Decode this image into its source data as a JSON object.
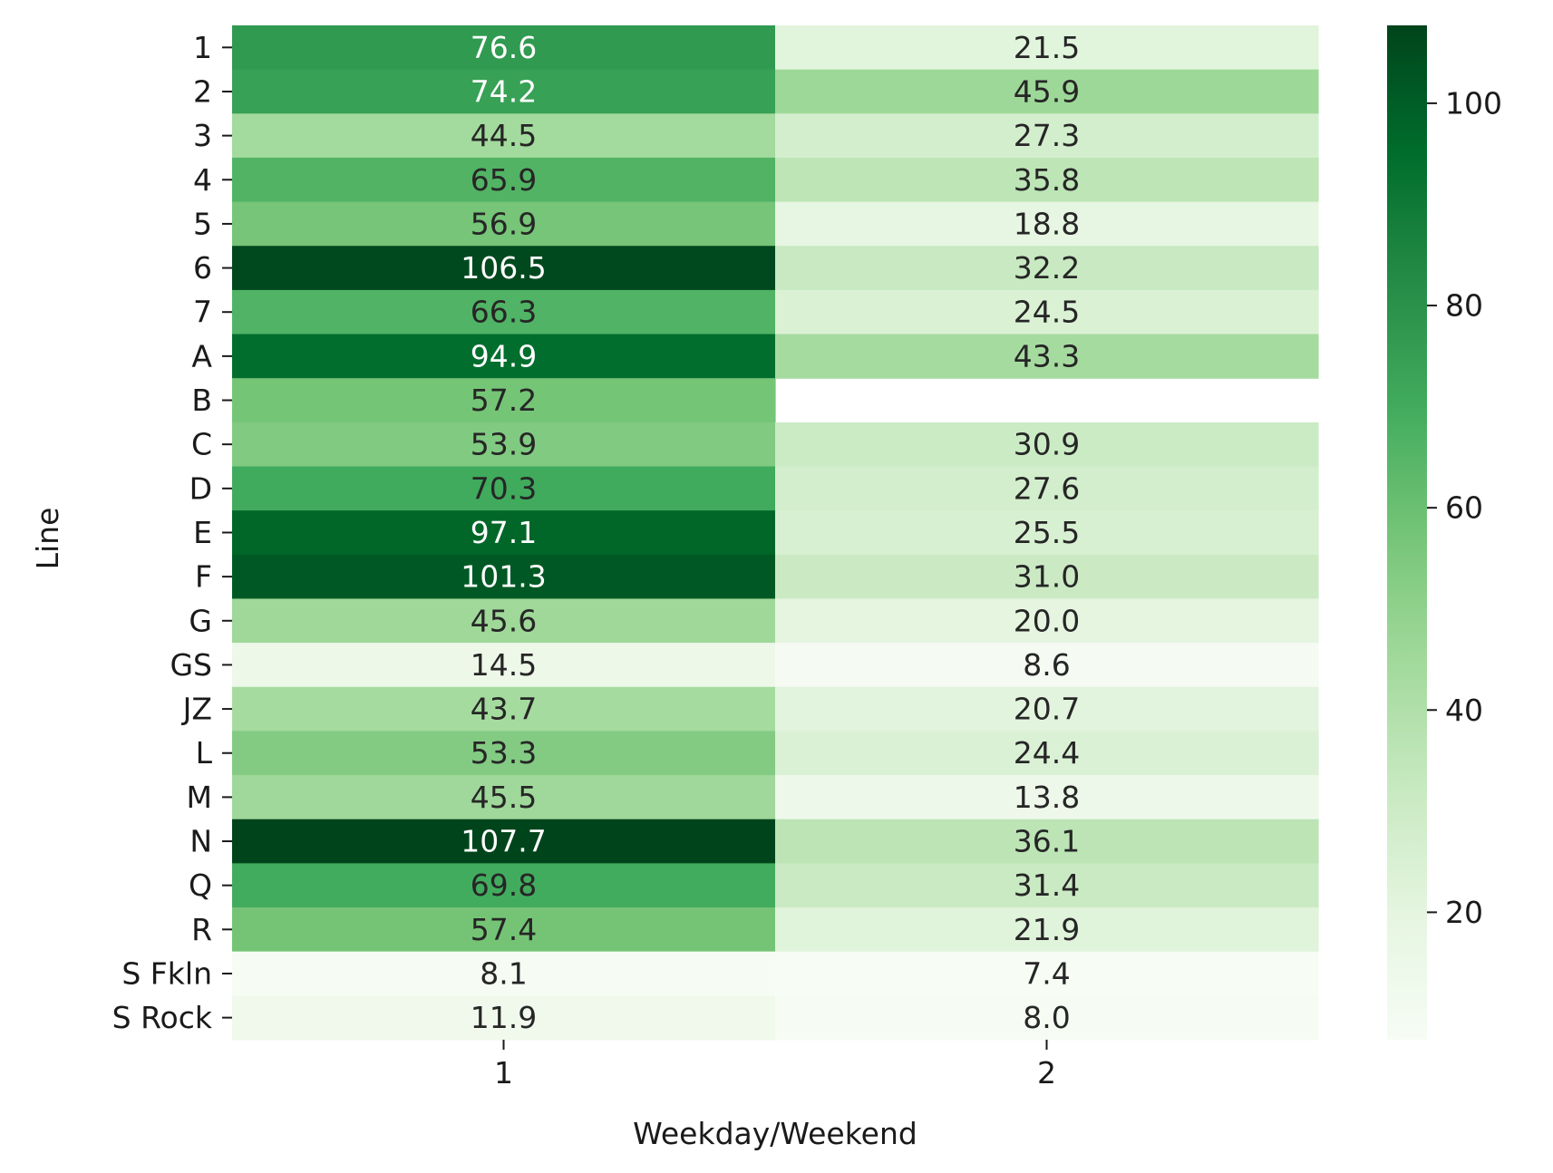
{
  "chart_data": {
    "type": "heatmap",
    "title": "",
    "xlabel": "Weekday/Weekend",
    "ylabel": "Line",
    "x_categories": [
      "1",
      "2"
    ],
    "y_categories": [
      "1",
      "2",
      "3",
      "4",
      "5",
      "6",
      "7",
      "A",
      "B",
      "C",
      "D",
      "E",
      "F",
      "G",
      "GS",
      "JZ",
      "L",
      "M",
      "N",
      "Q",
      "R",
      "S Fkln",
      "S Rock"
    ],
    "values": [
      [
        76.6,
        21.5
      ],
      [
        74.2,
        45.9
      ],
      [
        44.5,
        27.3
      ],
      [
        65.9,
        35.8
      ],
      [
        56.9,
        18.8
      ],
      [
        106.5,
        32.2
      ],
      [
        66.3,
        24.5
      ],
      [
        94.9,
        43.3
      ],
      [
        57.2,
        null
      ],
      [
        53.9,
        30.9
      ],
      [
        70.3,
        27.6
      ],
      [
        97.1,
        25.5
      ],
      [
        101.3,
        31.0
      ],
      [
        45.6,
        20.0
      ],
      [
        14.5,
        8.6
      ],
      [
        43.7,
        20.7
      ],
      [
        53.3,
        24.4
      ],
      [
        45.5,
        13.8
      ],
      [
        107.7,
        36.1
      ],
      [
        69.8,
        31.4
      ],
      [
        57.4,
        21.9
      ],
      [
        8.1,
        7.4
      ],
      [
        11.9,
        8.0
      ]
    ],
    "value_format": "0.0",
    "colormap": "Greens",
    "color_range": [
      7.4,
      107.7
    ],
    "colorbar_ticks": [
      20,
      40,
      60,
      80,
      100
    ],
    "legend_position": "right",
    "grid": false
  }
}
